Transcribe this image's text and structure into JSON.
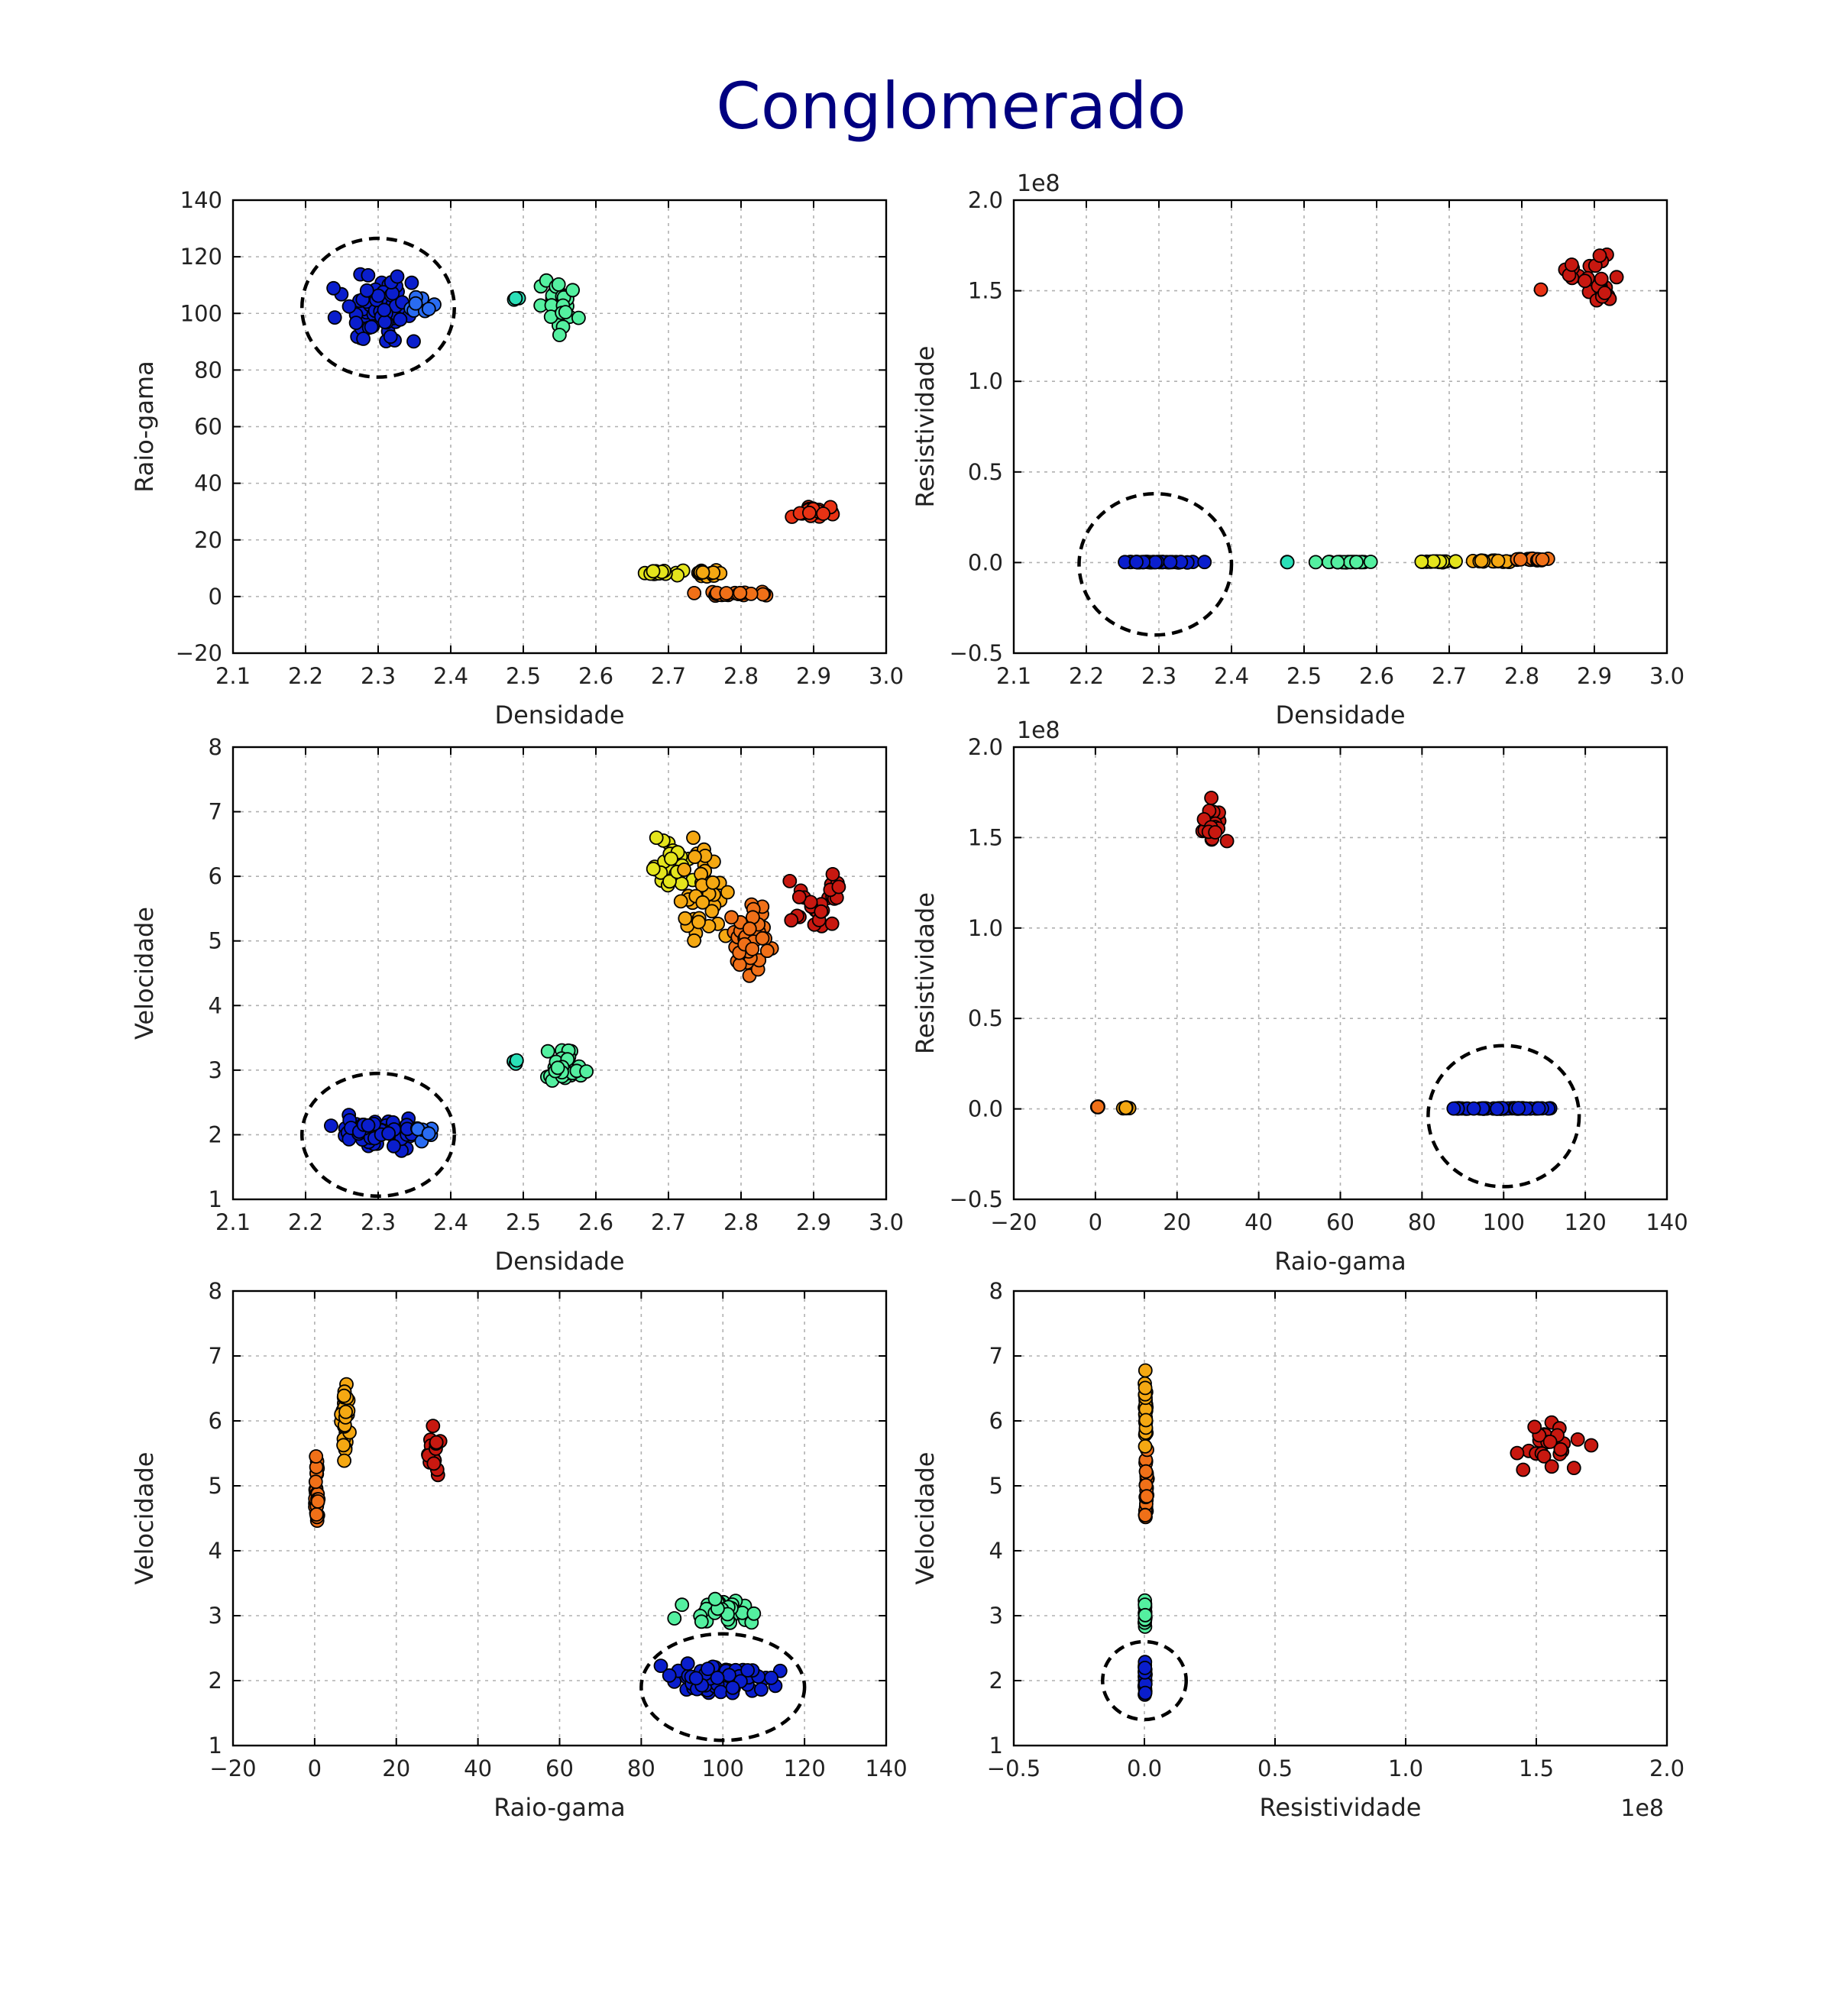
{
  "title": "Conglomerado",
  "colors": {
    "title": "#000080",
    "gridline": "#b0b0b0",
    "frame": "#000000",
    "marker_edge": "#000000"
  },
  "chart_data": [
    {
      "type": "scatter",
      "id": "p1",
      "xlabel": "Densidade",
      "ylabel": "Raio-gama",
      "xlim": [
        2.1,
        3.0
      ],
      "ylim": [
        -20,
        140
      ],
      "xticks": [
        2.1,
        2.2,
        2.3,
        2.4,
        2.5,
        2.6,
        2.7,
        2.8,
        2.9,
        3.0
      ],
      "yticks": [
        -20,
        0,
        20,
        40,
        60,
        80,
        100,
        120,
        140
      ],
      "xtick_labels": [
        "2.1",
        "2.2",
        "2.3",
        "2.4",
        "2.5",
        "2.6",
        "2.7",
        "2.8",
        "2.9",
        "3.0"
      ],
      "ytick_labels": [
        "−20",
        "0",
        "20",
        "40",
        "60",
        "80",
        "100",
        "120",
        "140"
      ],
      "offset_text": "",
      "grid": true,
      "clusters": [
        {
          "color": "#0a1ecd",
          "x": [
            2.22,
            2.38
          ],
          "y": [
            85,
            118
          ],
          "n": 70
        },
        {
          "color": "#2a6cf2",
          "x": [
            2.33,
            2.38
          ],
          "y": [
            95,
            112
          ],
          "n": 10
        },
        {
          "color": "#2ae0b8",
          "x": [
            2.48,
            2.5
          ],
          "y": [
            104,
            107
          ],
          "n": 3
        },
        {
          "color": "#54f0a0",
          "x": [
            2.51,
            2.59
          ],
          "y": [
            90,
            114
          ],
          "n": 30
        },
        {
          "color": "#e4e41c",
          "x": [
            2.65,
            2.73
          ],
          "y": [
            7,
            10
          ],
          "n": 14
        },
        {
          "color": "#f5a812",
          "x": [
            2.72,
            2.79
          ],
          "y": [
            7,
            10
          ],
          "n": 12
        },
        {
          "color": "#f07018",
          "x": [
            2.72,
            2.85
          ],
          "y": [
            0,
            2
          ],
          "n": 22
        },
        {
          "color": "#e83214",
          "x": [
            2.85,
            2.95
          ],
          "y": [
            27,
            33
          ],
          "n": 22
        }
      ],
      "highlight": {
        "cx": 2.3,
        "cy": 102,
        "rx": 0.105,
        "ry": 24.5
      }
    },
    {
      "type": "scatter",
      "id": "p2",
      "xlabel": "Densidade",
      "ylabel": "Resistividade",
      "xlim": [
        2.1,
        3.0
      ],
      "ylim": [
        -50000000,
        200000000
      ],
      "xticks": [
        2.1,
        2.2,
        2.3,
        2.4,
        2.5,
        2.6,
        2.7,
        2.8,
        2.9,
        3.0
      ],
      "yticks": [
        -50000000,
        0,
        50000000,
        100000000,
        150000000,
        200000000
      ],
      "xtick_labels": [
        "2.1",
        "2.2",
        "2.3",
        "2.4",
        "2.5",
        "2.6",
        "2.7",
        "2.8",
        "2.9",
        "3.0"
      ],
      "ytick_labels": [
        "−0.5",
        "0.0",
        "0.5",
        "1.0",
        "1.5",
        "2.0"
      ],
      "offset_text": "1e8",
      "grid": true,
      "clusters": [
        {
          "color": "#0a1ecd",
          "x": [
            2.22,
            2.38
          ],
          "y": [
            0,
            500000
          ],
          "n": 40
        },
        {
          "color": "#2ae0b8",
          "x": [
            2.47,
            2.49
          ],
          "y": [
            0,
            500000
          ],
          "n": 2
        },
        {
          "color": "#54f0a0",
          "x": [
            2.51,
            2.6
          ],
          "y": [
            0,
            500000
          ],
          "n": 22
        },
        {
          "color": "#e4e41c",
          "x": [
            2.65,
            2.73
          ],
          "y": [
            0,
            1000000
          ],
          "n": 16
        },
        {
          "color": "#f5a812",
          "x": [
            2.72,
            2.8
          ],
          "y": [
            0,
            1500000
          ],
          "n": 18
        },
        {
          "color": "#f07018",
          "x": [
            2.78,
            2.85
          ],
          "y": [
            1000000,
            2500000
          ],
          "n": 18
        },
        {
          "color": "#e83214",
          "x": [
            2.82,
            2.83
          ],
          "y": [
            149000000,
            151000000
          ],
          "n": 1
        },
        {
          "color": "#c81810",
          "x": [
            2.85,
            2.95
          ],
          "y": [
            135000000,
            175000000
          ],
          "n": 28
        }
      ],
      "highlight": {
        "cx": 2.295,
        "cy": -1000000,
        "rx": 0.105,
        "ry": 39000000
      }
    },
    {
      "type": "scatter",
      "id": "p3",
      "xlabel": "Densidade",
      "ylabel": "Velocidade",
      "xlim": [
        2.1,
        3.0
      ],
      "ylim": [
        1,
        8
      ],
      "xticks": [
        2.1,
        2.2,
        2.3,
        2.4,
        2.5,
        2.6,
        2.7,
        2.8,
        2.9,
        3.0
      ],
      "yticks": [
        1,
        2,
        3,
        4,
        5,
        6,
        7,
        8
      ],
      "xtick_labels": [
        "2.1",
        "2.2",
        "2.3",
        "2.4",
        "2.5",
        "2.6",
        "2.7",
        "2.8",
        "2.9",
        "3.0"
      ],
      "ytick_labels": [
        "1",
        "2",
        "3",
        "4",
        "5",
        "6",
        "7",
        "8"
      ],
      "offset_text": "",
      "grid": true,
      "clusters": [
        {
          "color": "#0a1ecd",
          "x": [
            2.22,
            2.38
          ],
          "y": [
            1.7,
            2.35
          ],
          "n": 75
        },
        {
          "color": "#2a6cf2",
          "x": [
            2.34,
            2.38
          ],
          "y": [
            1.8,
            2.2
          ],
          "n": 8
        },
        {
          "color": "#2ae0b8",
          "x": [
            2.48,
            2.5
          ],
          "y": [
            3.0,
            3.25
          ],
          "n": 3
        },
        {
          "color": "#54f0a0",
          "x": [
            2.51,
            2.6
          ],
          "y": [
            2.65,
            3.4
          ],
          "n": 32
        },
        {
          "color": "#e4e41c",
          "x": [
            2.66,
            2.74
          ],
          "y": [
            5.6,
            6.75
          ],
          "n": 28
        },
        {
          "color": "#f5a812",
          "x": [
            2.7,
            2.8
          ],
          "y": [
            4.5,
            7.0
          ],
          "n": 40
        },
        {
          "color": "#f07018",
          "x": [
            2.77,
            2.86
          ],
          "y": [
            4.15,
            5.8
          ],
          "n": 45
        },
        {
          "color": "#c81810",
          "x": [
            2.86,
            2.95
          ],
          "y": [
            4.95,
            6.2
          ],
          "n": 28
        }
      ],
      "highlight": {
        "cx": 2.3,
        "cy": 2.0,
        "rx": 0.105,
        "ry": 0.95
      }
    },
    {
      "type": "scatter",
      "id": "p4",
      "xlabel": "Raio-gama",
      "ylabel": "Resistividade",
      "xlim": [
        -20,
        140
      ],
      "ylim": [
        -50000000,
        200000000
      ],
      "xticks": [
        -20,
        0,
        20,
        40,
        60,
        80,
        100,
        120,
        140
      ],
      "yticks": [
        -50000000,
        0,
        50000000,
        100000000,
        150000000,
        200000000
      ],
      "xtick_labels": [
        "−20",
        "0",
        "20",
        "40",
        "60",
        "80",
        "100",
        "120",
        "140"
      ],
      "ytick_labels": [
        "−0.5",
        "0.0",
        "0.5",
        "1.0",
        "1.5",
        "2.0"
      ],
      "offset_text": "1e8",
      "grid": true,
      "clusters": [
        {
          "color": "#f07018",
          "x": [
            0,
            1
          ],
          "y": [
            0,
            2500000
          ],
          "n": 4
        },
        {
          "color": "#f5a812",
          "x": [
            6,
            9
          ],
          "y": [
            0,
            1000000
          ],
          "n": 6
        },
        {
          "color": "#c81810",
          "x": [
            25,
            33
          ],
          "y": [
            135000000,
            175000000
          ],
          "n": 26
        },
        {
          "color": "#0a1ecd",
          "x": [
            82,
            117
          ],
          "y": [
            0,
            500000
          ],
          "n": 45
        }
      ],
      "highlight": {
        "cx": 100,
        "cy": -4000000,
        "rx": 18.5,
        "ry": 39000000
      }
    },
    {
      "type": "scatter",
      "id": "p5",
      "xlabel": "Raio-gama",
      "ylabel": "Velocidade",
      "xlim": [
        -20,
        140
      ],
      "ylim": [
        1,
        8
      ],
      "xticks": [
        -20,
        0,
        20,
        40,
        60,
        80,
        100,
        120,
        140
      ],
      "yticks": [
        1,
        2,
        3,
        4,
        5,
        6,
        7,
        8
      ],
      "xtick_labels": [
        "−20",
        "0",
        "20",
        "40",
        "60",
        "80",
        "100",
        "120",
        "140"
      ],
      "ytick_labels": [
        "1",
        "2",
        "3",
        "4",
        "5",
        "6",
        "7",
        "8"
      ],
      "offset_text": "",
      "grid": true,
      "clusters": [
        {
          "color": "#f07018",
          "x": [
            0,
            1
          ],
          "y": [
            4.15,
            5.75
          ],
          "n": 32
        },
        {
          "color": "#f5a812",
          "x": [
            6,
            9
          ],
          "y": [
            5.25,
            7.0
          ],
          "n": 30
        },
        {
          "color": "#c81810",
          "x": [
            26,
            32
          ],
          "y": [
            4.95,
            6.2
          ],
          "n": 20
        },
        {
          "color": "#54f0a0",
          "x": [
            86,
            113
          ],
          "y": [
            2.7,
            3.4
          ],
          "n": 30
        },
        {
          "color": "#0a1ecd",
          "x": [
            82,
            117
          ],
          "y": [
            1.7,
            2.35
          ],
          "n": 85
        }
      ],
      "highlight": {
        "cx": 100,
        "cy": 1.9,
        "rx": 20,
        "ry": 0.82
      }
    },
    {
      "type": "scatter",
      "id": "p6",
      "xlabel": "Resistividade",
      "ylabel": "Velocidade",
      "xlim": [
        -50000000,
        200000000
      ],
      "ylim": [
        1,
        8
      ],
      "xticks": [
        -50000000,
        0,
        50000000,
        100000000,
        150000000,
        200000000
      ],
      "yticks": [
        1,
        2,
        3,
        4,
        5,
        6,
        7,
        8
      ],
      "xtick_labels": [
        "−0.5",
        "0.0",
        "0.5",
        "1.0",
        "1.5",
        "2.0"
      ],
      "ytick_labels": [
        "1",
        "2",
        "3",
        "4",
        "5",
        "6",
        "7",
        "8"
      ],
      "offset_text": "1e8",
      "grid": true,
      "clusters": [
        {
          "color": "#f07018",
          "x": [
            0,
            1500000
          ],
          "y": [
            4.15,
            5.75
          ],
          "n": 30
        },
        {
          "color": "#f5a812",
          "x": [
            0,
            1000000
          ],
          "y": [
            5.3,
            7.0
          ],
          "n": 28
        },
        {
          "color": "#54f0a0",
          "x": [
            0,
            500000
          ],
          "y": [
            2.7,
            3.4
          ],
          "n": 18
        },
        {
          "color": "#0a1ecd",
          "x": [
            0,
            500000
          ],
          "y": [
            1.7,
            2.35
          ],
          "n": 24
        },
        {
          "color": "#c81810",
          "x": [
            135000000,
            175000000
          ],
          "y": [
            4.95,
            6.2
          ],
          "n": 24
        }
      ],
      "highlight": {
        "cx": 0,
        "cy": 2.0,
        "rx": 16000000,
        "ry": 0.6
      }
    }
  ]
}
